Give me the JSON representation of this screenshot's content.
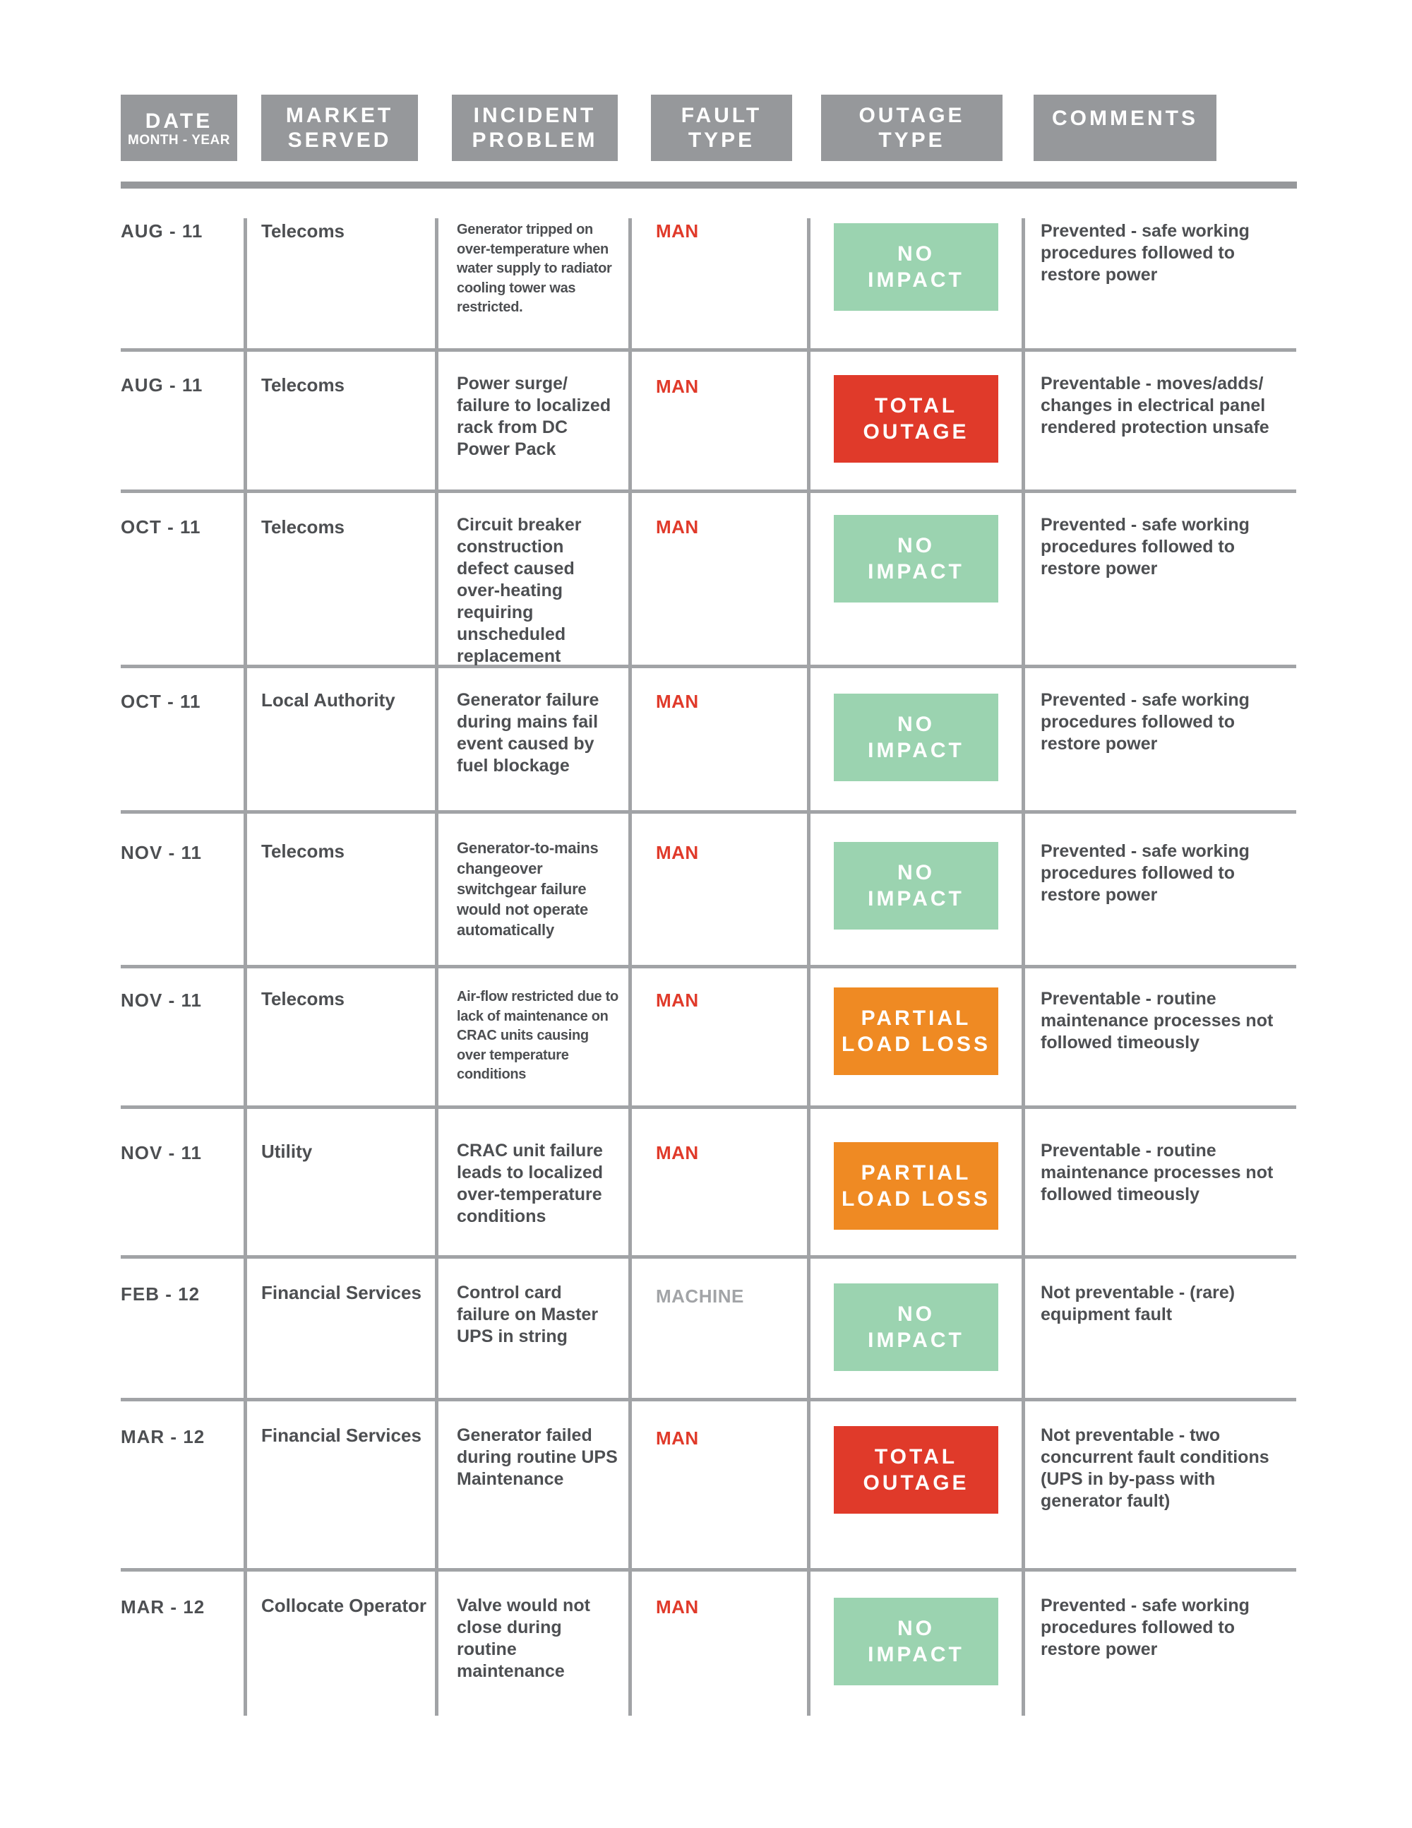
{
  "headers": {
    "date": "DATE",
    "date_sub": "MONTH - YEAR",
    "market_1": "MARKET",
    "market_2": "SERVED",
    "incident_1": "INCIDENT",
    "incident_2": "PROBLEM",
    "fault_1": "FAULT",
    "fault_2": "TYPE",
    "outage_1": "OUTAGE",
    "outage_2": "TYPE",
    "comments": "COMMENTS"
  },
  "colors": {
    "header_gray": "#96989b",
    "no_impact": "#9bd3b0",
    "total_outage": "#e03a2a",
    "partial_load_loss": "#ef8a23",
    "man_text": "#e03a2a",
    "machine_text": "#a2a4a7"
  },
  "rows": [
    {
      "date": "AUG - 11",
      "market": "Telecoms",
      "incident": "Generator tripped on over-temperature when water supply to radiator cooling tower was restricted.",
      "fault": "MAN",
      "outage_1": "NO",
      "outage_2": "IMPACT",
      "comment": "Prevented - safe working procedures followed to restore power"
    },
    {
      "date": "AUG - 11",
      "market": "Telecoms",
      "incident": "Power surge/ failure to localized rack from DC Power Pack",
      "fault": "MAN",
      "outage_1": "TOTAL",
      "outage_2": "OUTAGE",
      "comment": "Preventable - moves/adds/ changes in electrical panel rendered protection unsafe"
    },
    {
      "date": "OCT - 11",
      "market": "Telecoms",
      "incident": "Circuit breaker construction defect caused over-heating requiring unscheduled replacement",
      "fault": "MAN",
      "outage_1": "NO",
      "outage_2": "IMPACT",
      "comment": "Prevented - safe working procedures followed to restore power"
    },
    {
      "date": "OCT - 11",
      "market": "Local Authority",
      "incident": "Generator failure during mains fail event caused by fuel blockage",
      "fault": "MAN",
      "outage_1": "NO",
      "outage_2": "IMPACT",
      "comment": "Prevented - safe working procedures followed to restore power"
    },
    {
      "date": "NOV - 11",
      "market": "Telecoms",
      "incident": "Generator-to-mains changeover switchgear failure would not operate automatically",
      "fault": "MAN",
      "outage_1": "NO",
      "outage_2": "IMPACT",
      "comment": "Prevented - safe working procedures followed to restore power"
    },
    {
      "date": "NOV - 11",
      "market": "Telecoms",
      "incident": "Air-flow restricted due to lack of maintenance on CRAC units causing over temperature conditions",
      "fault": "MAN",
      "outage_1": "PARTIAL",
      "outage_2": "LOAD LOSS",
      "comment": "Preventable - routine maintenance processes not followed timeously"
    },
    {
      "date": "NOV - 11",
      "market": "Utility",
      "incident": "CRAC unit failure leads to localized over-temperature conditions",
      "fault": "MAN",
      "outage_1": "PARTIAL",
      "outage_2": "LOAD LOSS",
      "comment": "Preventable - routine maintenance processes not followed timeously"
    },
    {
      "date": "FEB - 12",
      "market": "Financial Services",
      "incident": "Control card failure on Master UPS in string",
      "fault": "MACHINE",
      "outage_1": "NO",
      "outage_2": "IMPACT",
      "comment": "Not preventable - (rare) equipment fault"
    },
    {
      "date": "MAR - 12",
      "market": "Financial Services",
      "incident": "Generator failed during routine UPS Maintenance",
      "fault": "MAN",
      "outage_1": "TOTAL",
      "outage_2": "OUTAGE",
      "comment": "Not preventable - two concurrent fault conditions (UPS in by-pass with generator fault)"
    },
    {
      "date": "MAR - 12",
      "market": "Collocate Operator",
      "incident": "Valve would not close during routine maintenance",
      "fault": "MAN",
      "outage_1": "NO",
      "outage_2": "IMPACT",
      "comment": "Prevented - safe working procedures followed to restore power"
    }
  ]
}
